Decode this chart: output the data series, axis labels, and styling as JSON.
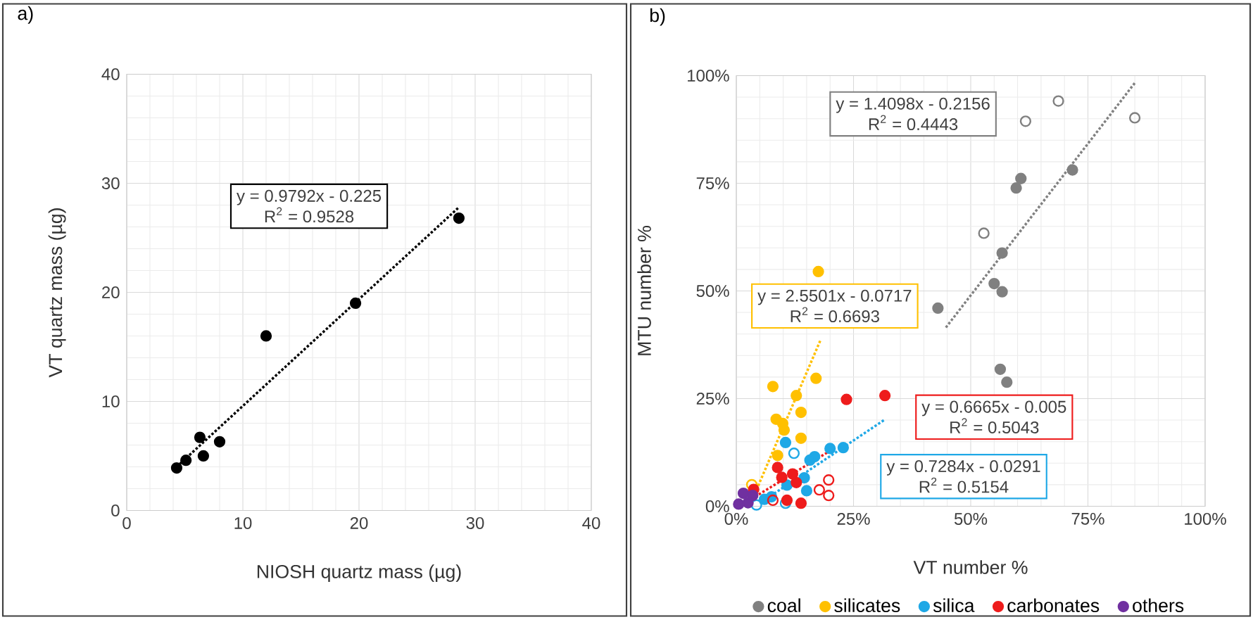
{
  "chart_data": [
    {
      "type": "scatter",
      "title": "a)",
      "xlabel": "NIOSH quartz mass (µg)",
      "ylabel": "VT quartz mass (µg)",
      "xlim": [
        0,
        40
      ],
      "ylim": [
        0,
        40
      ],
      "xticks": [
        0,
        10,
        20,
        30,
        40
      ],
      "yticks": [
        0,
        10,
        20,
        30,
        40
      ],
      "grid": true,
      "marker": "circle",
      "series": [
        {
          "color": "#000000",
          "x": [
            4.3,
            5.1,
            6.3,
            6.6,
            8.0,
            12.0,
            19.7,
            28.6
          ],
          "values": [
            3.9,
            4.6,
            6.7,
            5.0,
            6.3,
            16.0,
            19.0,
            26.8
          ]
        },
        {
          "type": "line",
          "marker": "none",
          "line_style": "dotted",
          "color": "#000000",
          "x": [
            4.3,
            28.6
          ],
          "values": [
            4.0,
            27.8
          ]
        }
      ],
      "annotations": [
        "y = 0.9792x - 0.225",
        "R$^{2}$ = 0.9528"
      ]
    },
    {
      "type": "scatter",
      "title": "b)",
      "xlabel": "VT number %",
      "ylabel": "MTU number %",
      "xlim": [
        0,
        100
      ],
      "ylim": [
        0,
        100
      ],
      "xticks": [
        {
          "value": 0,
          "label": "0%"
        },
        {
          "value": 25,
          "label": "25%"
        },
        {
          "value": 50,
          "label": "50%"
        },
        {
          "value": 75,
          "label": "75%"
        },
        {
          "value": 100,
          "label": "100%"
        }
      ],
      "yticks": [
        {
          "value": 0,
          "label": "0%"
        },
        {
          "value": 25,
          "label": "25%"
        },
        {
          "value": 50,
          "label": "50%"
        },
        {
          "value": 75,
          "label": "75%"
        },
        {
          "value": 100,
          "label": "100%"
        }
      ],
      "grid": true,
      "marker": "circle",
      "legend": "bottom",
      "series": [
        {
          "name": "coal",
          "color": "#808080",
          "x": [
            60.7,
            59.7,
            71.7,
            56.7,
            55.0,
            56.7,
            43.0,
            56.3,
            57.7
          ],
          "values": [
            76.1,
            73.9,
            78.1,
            58.8,
            51.7,
            49.8,
            46.0,
            31.8,
            28.8
          ]
        },
        {
          "color": "#808080",
          "x": [
            68.7,
            61.7,
            85.0,
            52.8
          ],
          "values": [
            94.1,
            89.4,
            90.2,
            63.4
          ]
        },
        {
          "name": "silicates",
          "color": "#ffc000",
          "x": [
            17.5,
            17.0,
            12.8,
            7.8,
            13.8,
            8.5,
            9.9,
            10.2,
            13.8,
            8.8,
            null
          ],
          "values": [
            54.5,
            29.7,
            25.7,
            27.8,
            21.8,
            20.2,
            19.2,
            17.7,
            15.8,
            11.8,
            null
          ]
        },
        {
          "color": "#ffc000",
          "x": [
            3.3
          ],
          "values": [
            5.0
          ]
        },
        {
          "name": "silica",
          "color": "#1fa8e6",
          "x": [
            22.8,
            20.0,
            16.7,
            15.7,
            10.5,
            14.5,
            null,
            15.0,
            10.8,
            6.0,
            7.5
          ],
          "values": [
            13.6,
            13.4,
            11.5,
            10.7,
            14.8,
            6.6,
            null,
            3.6,
            4.9,
            1.6,
            2.2
          ]
        },
        {
          "color": "#1fa8e6",
          "x": [
            12.3,
            4.3,
            10.5
          ],
          "values": [
            12.3,
            0.3,
            0.7
          ]
        },
        {
          "name": "carbonates",
          "color": "#ee1c1c",
          "x": [
            23.5,
            31.7,
            8.8,
            9.7,
            12.8,
            3.7,
            10.8,
            13.8,
            12.0
          ],
          "values": [
            24.8,
            25.7,
            9.0,
            6.7,
            5.5,
            3.9,
            1.4,
            0.7,
            7.5
          ]
        },
        {
          "color": "#ee1c1c",
          "x": [
            19.7,
            17.7,
            19.7,
            7.8
          ],
          "values": [
            6.1,
            3.8,
            2.5,
            1.4
          ]
        },
        {
          "name": "others",
          "color": "#7030a0",
          "x": [
            0.5,
            1.5,
            3.5,
            2.5
          ],
          "values": [
            0.5,
            3.0,
            2.5,
            0.8
          ]
        },
        {
          "type": "line",
          "marker": "none",
          "line_style": "dotted",
          "color": "#808080",
          "x": [
            44.7,
            85.0
          ],
          "values": [
            41.5,
            98.3
          ]
        },
        {
          "type": "line",
          "marker": "none",
          "line_style": "dotted",
          "color": "#ffc000",
          "x": [
            4.3,
            18.0
          ],
          "values": [
            3.8,
            38.7
          ]
        },
        {
          "type": "line",
          "marker": "none",
          "line_style": "dotted",
          "color": "#1fa8e6",
          "x": [
            5.0,
            31.5
          ],
          "values": [
            0.7,
            20.0
          ]
        },
        {
          "type": "line",
          "marker": "none",
          "line_style": "dotted",
          "color": "#ee1c1c",
          "x": [
            4.0,
            20.5
          ],
          "values": [
            2.2,
            13.2
          ]
        }
      ],
      "annotations": [
        "y = 1.4098x - 0.2156",
        "R$^{2}$ = 0.4443",
        "y = 2.5501x - 0.0717",
        "R$^{2}$ = 0.6693",
        "y = 0.6665x - 0.005",
        "R$^{2}$ = 0.5043",
        "y = 0.7284x - 0.0291",
        "R$^{2}$ = 0.5154"
      ]
    }
  ]
}
